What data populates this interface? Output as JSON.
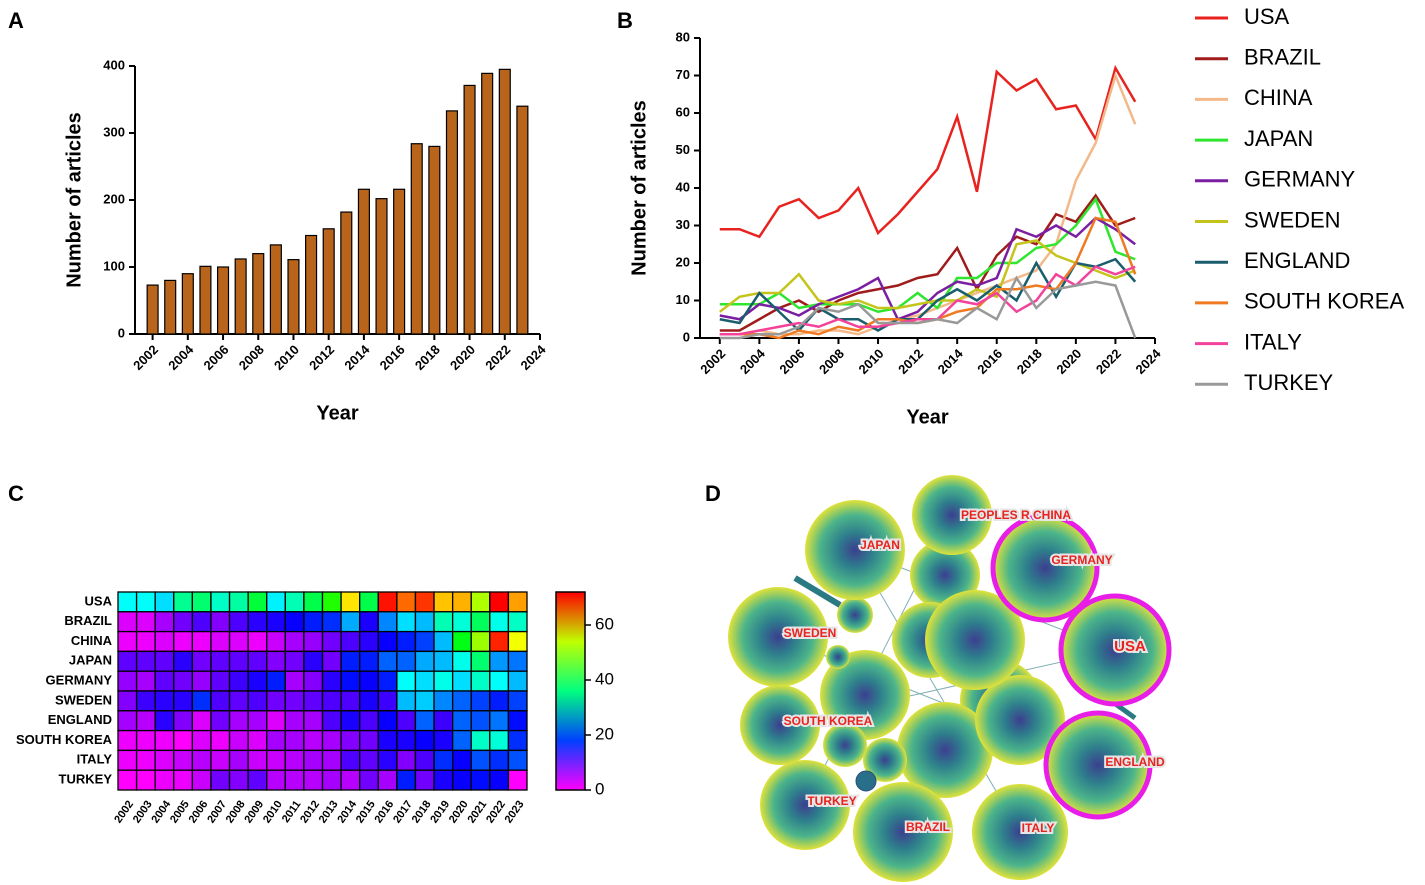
{
  "chart_data": [
    {
      "panel": "A",
      "type": "bar",
      "xlabel": "Year",
      "ylabel": "Number of articles",
      "color": "#b8651b",
      "x": [
        2002,
        2003,
        2004,
        2005,
        2006,
        2007,
        2008,
        2009,
        2010,
        2011,
        2012,
        2013,
        2014,
        2015,
        2016,
        2017,
        2018,
        2019,
        2020,
        2021,
        2022,
        2023
      ],
      "values": [
        73,
        80,
        90,
        101,
        100,
        112,
        120,
        133,
        111,
        147,
        157,
        182,
        216,
        202,
        216,
        284,
        280,
        333,
        371,
        389,
        395,
        340
      ],
      "xlim": [
        2001,
        2024
      ],
      "xticks": [
        2002,
        2004,
        2006,
        2008,
        2010,
        2012,
        2014,
        2016,
        2018,
        2020,
        2022,
        2024
      ],
      "ylim": [
        0,
        400
      ],
      "yticks": [
        0,
        100,
        200,
        300,
        400
      ]
    },
    {
      "panel": "B",
      "type": "line",
      "xlabel": "Year",
      "ylabel": "Number of articles",
      "legend": "right",
      "x": [
        2002,
        2003,
        2004,
        2005,
        2006,
        2007,
        2008,
        2009,
        2010,
        2011,
        2012,
        2013,
        2014,
        2015,
        2016,
        2017,
        2018,
        2019,
        2020,
        2021,
        2022,
        2023
      ],
      "series": [
        {
          "name": "USA",
          "color": "#e8231f",
          "values": [
            29,
            29,
            27,
            35,
            37,
            32,
            34,
            40,
            28,
            33,
            39,
            45,
            59,
            39,
            71,
            66,
            69,
            61,
            62,
            53,
            72,
            63
          ]
        },
        {
          "name": "BRAZIL",
          "color": "#a01c1c",
          "values": [
            2,
            2,
            5,
            8,
            10,
            7,
            10,
            12,
            13,
            14,
            16,
            17,
            24,
            13,
            22,
            27,
            25,
            33,
            31,
            38,
            30,
            32
          ]
        },
        {
          "name": "CHINA",
          "color": "#f4b98a",
          "values": [
            1,
            1,
            2,
            1,
            1,
            2,
            2,
            1,
            3,
            5,
            6,
            8,
            10,
            12,
            14,
            16,
            18,
            25,
            42,
            52,
            70,
            57
          ]
        },
        {
          "name": "JAPAN",
          "color": "#2fe62f",
          "values": [
            9,
            9,
            9,
            12,
            8,
            9,
            9,
            9,
            7,
            8,
            12,
            8,
            16,
            16,
            20,
            20,
            24,
            25,
            30,
            37,
            23,
            21
          ]
        },
        {
          "name": "GERMANY",
          "color": "#7b1fa2",
          "values": [
            6,
            5,
            9,
            8,
            6,
            9,
            11,
            13,
            16,
            5,
            7,
            12,
            15,
            14,
            16,
            29,
            27,
            30,
            27,
            32,
            29,
            25
          ]
        },
        {
          "name": "SWEDEN",
          "color": "#c4c41a",
          "values": [
            7,
            11,
            12,
            12,
            17,
            10,
            9,
            10,
            8,
            8,
            9,
            10,
            10,
            13,
            11,
            25,
            26,
            22,
            20,
            18,
            16,
            18
          ]
        },
        {
          "name": "ENGLAND",
          "color": "#1a5e6e",
          "values": [
            5,
            4,
            12,
            7,
            2,
            8,
            5,
            5,
            2,
            5,
            5,
            10,
            13,
            10,
            14,
            10,
            20,
            11,
            20,
            19,
            21,
            15
          ]
        },
        {
          "name": "SOUTH KOREA",
          "color": "#f07a22",
          "values": [
            1,
            1,
            1,
            0,
            2,
            1,
            3,
            2,
            5,
            5,
            4,
            5,
            7,
            8,
            13,
            13,
            14,
            13,
            20,
            32,
            31,
            17
          ]
        },
        {
          "name": "ITALY",
          "color": "#f2439b",
          "values": [
            1,
            1,
            2,
            3,
            4,
            3,
            5,
            3,
            3,
            4,
            5,
            5,
            10,
            9,
            12,
            7,
            10,
            17,
            14,
            19,
            17,
            19
          ]
        },
        {
          "name": "TURKEY",
          "color": "#999999",
          "values": [
            0,
            0,
            1,
            1,
            3,
            8,
            7,
            9,
            4,
            4,
            4,
            5,
            4,
            8,
            5,
            16,
            8,
            13,
            14,
            15,
            14,
            0
          ]
        }
      ],
      "xlim": [
        2001,
        2024
      ],
      "xticks": [
        2002,
        2004,
        2006,
        2008,
        2010,
        2012,
        2014,
        2016,
        2018,
        2020,
        2022,
        2024
      ],
      "ylim": [
        0,
        80
      ],
      "yticks": [
        0,
        10,
        20,
        30,
        40,
        50,
        60,
        70,
        80
      ]
    },
    {
      "panel": "C",
      "type": "heatmap",
      "x": [
        "2002",
        "2003",
        "2004",
        "2005",
        "2006",
        "2007",
        "2008",
        "2009",
        "2010",
        "2011",
        "2012",
        "2013",
        "2014",
        "2015",
        "2016",
        "2017",
        "2018",
        "2019",
        "2020",
        "2021",
        "2022",
        "2023"
      ],
      "y": [
        "USA",
        "BRAZIL",
        "CHINA",
        "JAPAN",
        "GERMANY",
        "SWEDEN",
        "ENGLAND",
        "SOUTH KOREA",
        "ITALY",
        "TURKEY"
      ],
      "z": [
        [
          29,
          29,
          27,
          35,
          37,
          32,
          34,
          40,
          28,
          33,
          39,
          45,
          59,
          39,
          71,
          66,
          69,
          61,
          62,
          53,
          72,
          63
        ],
        [
          2,
          2,
          5,
          8,
          10,
          7,
          10,
          12,
          13,
          14,
          16,
          17,
          24,
          13,
          22,
          27,
          25,
          33,
          31,
          38,
          30,
          32
        ],
        [
          1,
          1,
          2,
          1,
          1,
          2,
          2,
          1,
          3,
          5,
          6,
          8,
          10,
          12,
          14,
          16,
          18,
          25,
          42,
          52,
          70,
          57
        ],
        [
          9,
          9,
          9,
          12,
          8,
          9,
          9,
          9,
          7,
          8,
          12,
          8,
          16,
          16,
          20,
          20,
          24,
          25,
          30,
          37,
          23,
          21
        ],
        [
          6,
          5,
          9,
          8,
          6,
          9,
          11,
          13,
          16,
          5,
          7,
          12,
          15,
          14,
          16,
          29,
          27,
          30,
          27,
          32,
          29,
          25
        ],
        [
          7,
          11,
          12,
          12,
          17,
          10,
          9,
          10,
          8,
          8,
          9,
          10,
          10,
          13,
          11,
          25,
          26,
          22,
          20,
          18,
          16,
          18
        ],
        [
          5,
          4,
          12,
          7,
          2,
          8,
          5,
          5,
          2,
          5,
          5,
          10,
          13,
          10,
          14,
          10,
          20,
          11,
          20,
          19,
          21,
          15
        ],
        [
          1,
          1,
          1,
          0,
          2,
          1,
          3,
          2,
          5,
          5,
          4,
          5,
          7,
          8,
          13,
          13,
          14,
          13,
          20,
          32,
          31,
          17
        ],
        [
          1,
          1,
          2,
          3,
          4,
          3,
          5,
          3,
          3,
          4,
          5,
          5,
          10,
          9,
          12,
          7,
          10,
          17,
          14,
          19,
          17,
          19
        ],
        [
          0,
          0,
          1,
          1,
          3,
          8,
          7,
          9,
          4,
          4,
          4,
          5,
          4,
          8,
          5,
          16,
          8,
          13,
          14,
          15,
          14,
          0
        ]
      ],
      "zlim": [
        0,
        72
      ],
      "zticks": [
        0,
        20,
        40,
        60
      ]
    }
  ],
  "diagram": {
    "panel": "D",
    "nodes": [
      {
        "label": "JAPAN"
      },
      {
        "label": "PEOPLES R CHINA"
      },
      {
        "label": "GERMANY"
      },
      {
        "label": "USA"
      },
      {
        "label": "SWEDEN"
      },
      {
        "label": "SOUTH KOREA"
      },
      {
        "label": "ENGLAND"
      },
      {
        "label": "TURKEY"
      },
      {
        "label": "BRAZIL"
      },
      {
        "label": "ITALY"
      }
    ]
  }
}
